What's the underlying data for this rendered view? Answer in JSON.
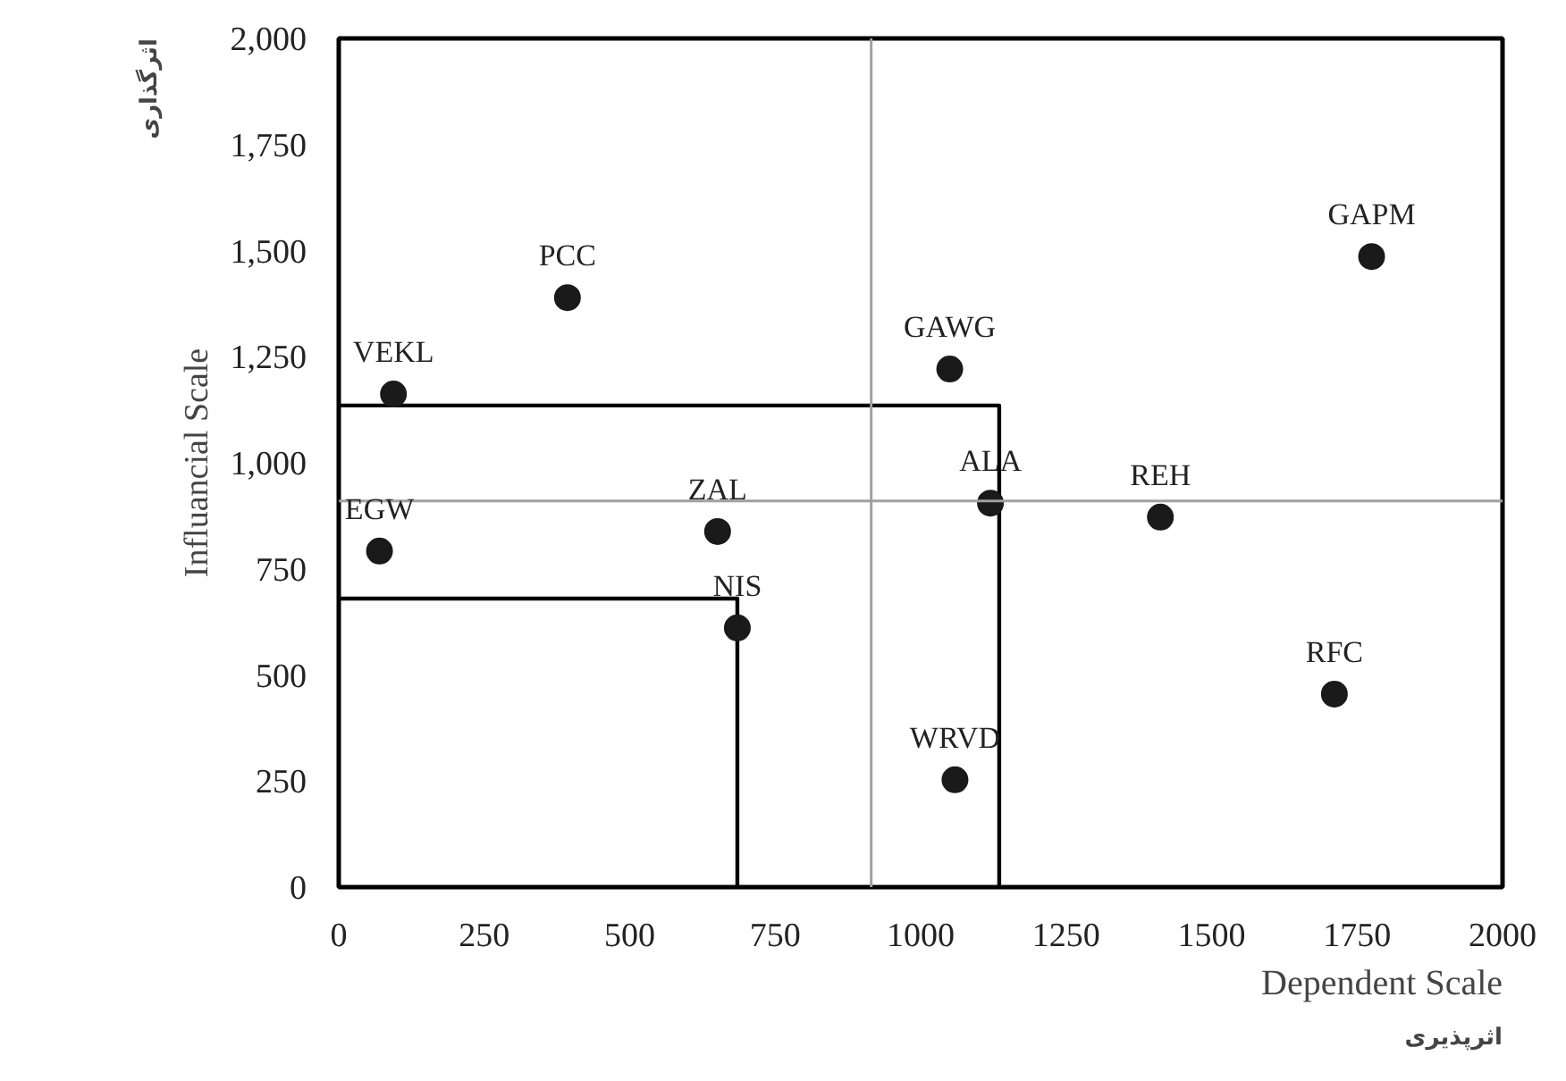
{
  "chart_data": {
    "type": "scatter",
    "xlabel": "Dependent Scale",
    "ylabel": "Influancial Scale",
    "xlim": [
      0,
      2000
    ],
    "ylim": [
      0,
      2000
    ],
    "xticks": [
      0,
      250,
      500,
      750,
      1000,
      1250,
      1500,
      1750,
      2000
    ],
    "yticks": [
      0,
      250,
      500,
      750,
      {
        "value": 1000,
        "label": "1,000"
      },
      {
        "value": 1250,
        "label": "1,250"
      },
      {
        "value": 1500,
        "label": "1,500"
      },
      {
        "value": 1750,
        "label": "1,750"
      },
      {
        "value": 2000,
        "label": "2,000"
      }
    ],
    "grid": false,
    "marker": "circle",
    "series": [
      {
        "type": "line",
        "color": "#000000",
        "marker": "none",
        "x": [
          0,
          1135,
          1135
        ],
        "values": [
          1135,
          1135,
          0
        ]
      },
      {
        "type": "line",
        "color": "#000000",
        "marker": "none",
        "x": [
          0,
          685,
          685
        ],
        "values": [
          680,
          680,
          0
        ]
      },
      {
        "color": "#1a1a1a",
        "x": [
          94,
          393,
          1050,
          1775,
          1120,
          1412,
          651,
          70,
          685,
          1059,
          1711
        ],
        "values": [
          1162,
          1389,
          1221,
          1486,
          905,
          872,
          838,
          792,
          611,
          253,
          455
        ]
      }
    ],
    "ref_lines": [
      {
        "axis": "x",
        "value": 915,
        "color": "#a0a0a0"
      },
      {
        "axis": "y",
        "value": 910,
        "color": "#a0a0a0"
      }
    ],
    "annotations": [
      "اثرپذیری",
      "اثرگذاری",
      {
        "text": "VEKL",
        "x": 94,
        "y": 1162
      },
      {
        "text": "PCC",
        "x": 393,
        "y": 1389
      },
      {
        "text": "GAWG",
        "x": 1050,
        "y": 1221
      },
      {
        "text": "GAPM",
        "x": 1775,
        "y": 1486
      },
      {
        "text": "ALA",
        "x": 1120,
        "y": 905
      },
      {
        "text": "REH",
        "x": 1412,
        "y": 872
      },
      {
        "text": "ZAL",
        "x": 651,
        "y": 838
      },
      {
        "text": "EGW",
        "x": 70,
        "y": 792
      },
      {
        "text": "NIS",
        "x": 685,
        "y": 611
      },
      {
        "text": "WRVD",
        "x": 1059,
        "y": 253
      },
      {
        "text": "RFC",
        "x": 1711,
        "y": 455
      }
    ]
  }
}
